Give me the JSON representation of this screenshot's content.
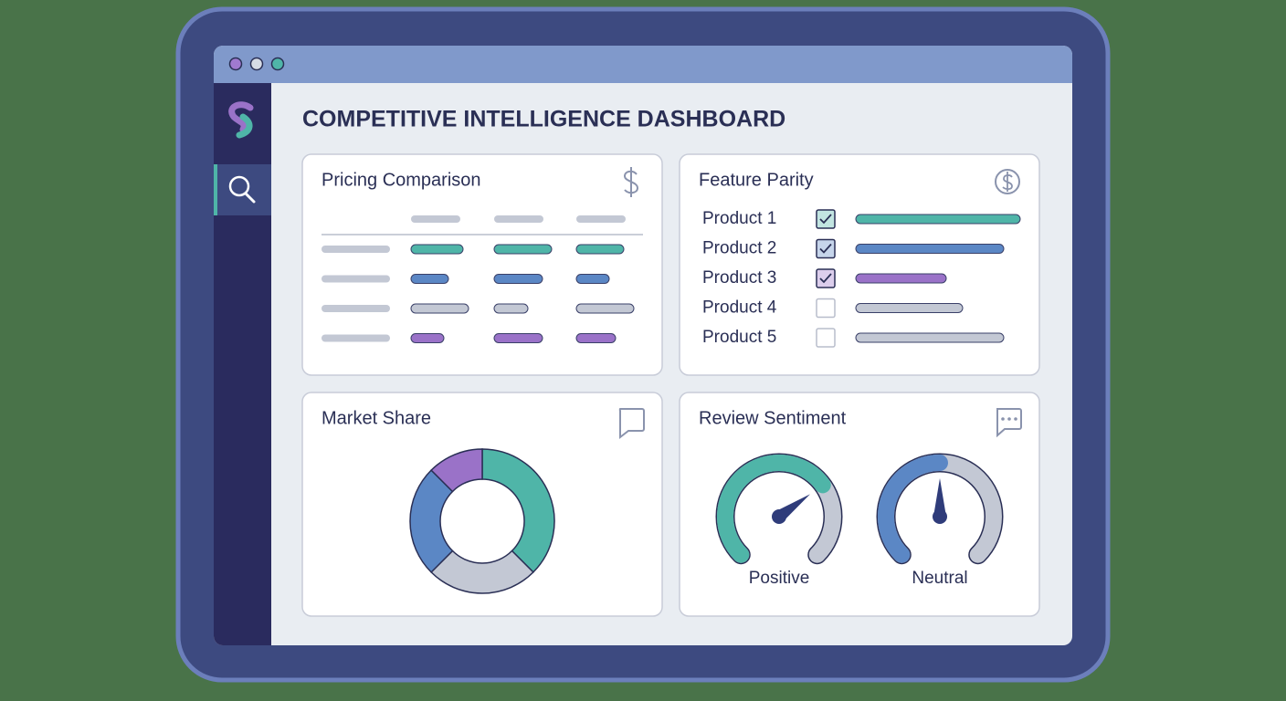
{
  "header": {
    "title": "COMPETITIVE INTELLIGENCE DASHBOARD"
  },
  "pricing_comparison": {
    "title": "Pricing Comparison"
  },
  "feature_parity": {
    "title": "Feature Parity",
    "products": [
      {
        "label": "Product 1",
        "checked": true,
        "color": "#4fb5a8",
        "value": 100
      },
      {
        "label": "Product 2",
        "checked": true,
        "color": "#5b87c5",
        "value": 90
      },
      {
        "label": "Product 3",
        "checked": true,
        "color": "#9a72c8",
        "value": 55
      },
      {
        "label": "Product 4",
        "checked": false,
        "color": "#c3c8d4",
        "value": 65
      },
      {
        "label": "Product 5",
        "checked": false,
        "color": "#c3c8d4",
        "value": 90
      }
    ]
  },
  "market_share": {
    "title": "Market Share",
    "values": [
      37.5,
      25,
      25,
      12.5
    ],
    "colors": [
      "#4fb5a8",
      "#c3c8d4",
      "#5b87c5",
      "#9a72c8"
    ]
  },
  "review_sentiment": {
    "title": "Review Sentiment",
    "gauges": [
      {
        "label": "Positive",
        "value": 70,
        "color": "#4fb5a8"
      },
      {
        "label": "Neutral",
        "value": 50,
        "color": "#5b87c5"
      }
    ]
  }
}
